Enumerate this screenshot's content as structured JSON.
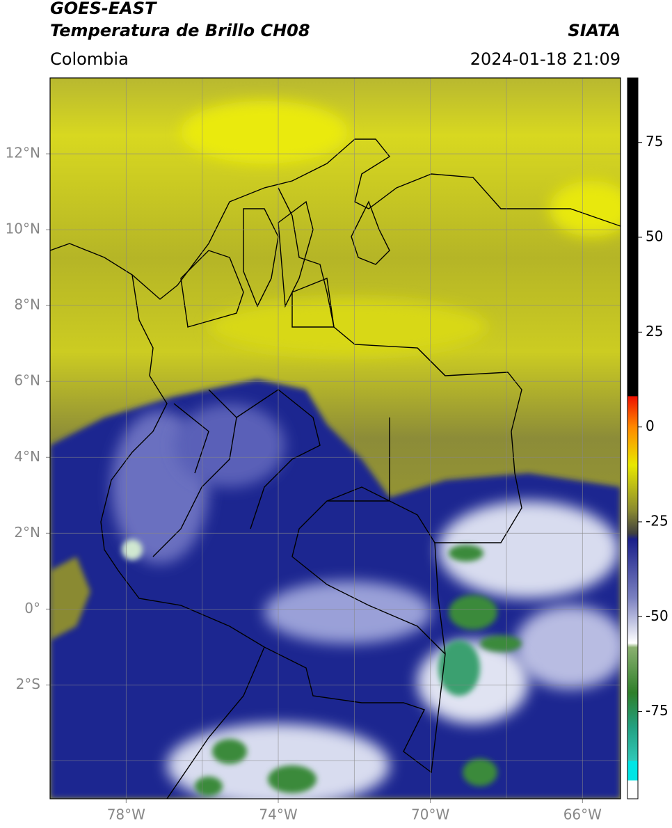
{
  "header": {
    "title": "GOES-EAST",
    "subtitle": "Temperatura de Brillo CH08",
    "region": "Colombia",
    "source": "SIATA",
    "datetime": "2024-01-18 21:09"
  },
  "map": {
    "xlim": [
      -80,
      -65
    ],
    "ylim": [
      -5,
      14
    ],
    "grid_step": 2,
    "xticks": [
      {
        "value": -78,
        "label": "78°W"
      },
      {
        "value": -74,
        "label": "74°W"
      },
      {
        "value": -70,
        "label": "70°W"
      },
      {
        "value": -66,
        "label": "66°W"
      }
    ],
    "yticks": [
      {
        "value": 12,
        "label": "12°N"
      },
      {
        "value": 10,
        "label": "10°N"
      },
      {
        "value": 8,
        "label": "8°N"
      },
      {
        "value": 6,
        "label": "6°N"
      },
      {
        "value": 4,
        "label": "4°N"
      },
      {
        "value": 2,
        "label": "2°N"
      },
      {
        "value": 0,
        "label": "0°"
      },
      {
        "value": -2,
        "label": "2°S"
      }
    ]
  },
  "colorbar": {
    "lim": [
      -98,
      92
    ],
    "ticks": [
      75,
      50,
      25,
      0,
      -25,
      -50,
      -75
    ]
  }
}
